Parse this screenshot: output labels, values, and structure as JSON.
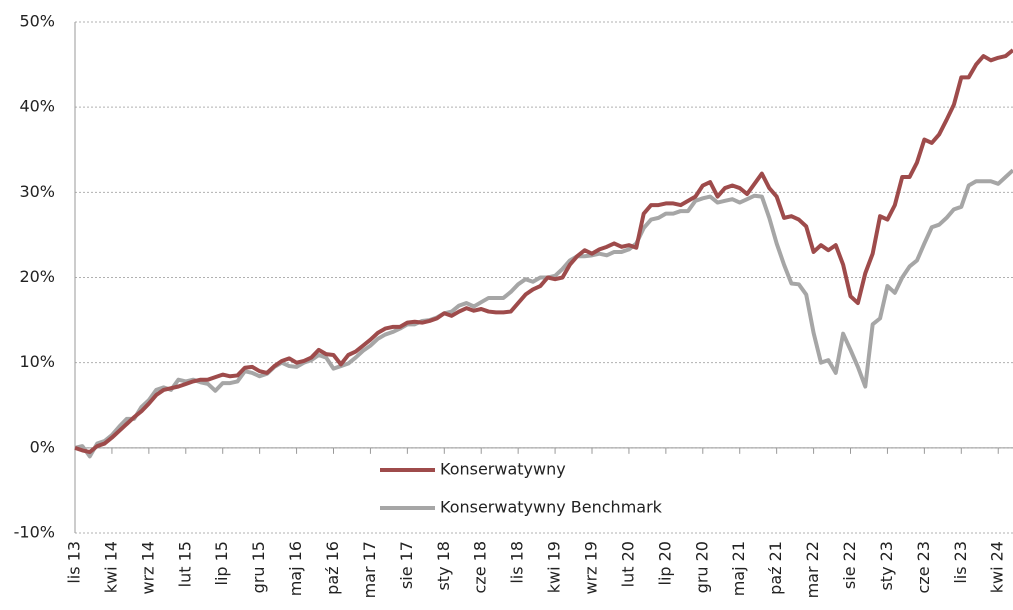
{
  "chart_data": {
    "type": "line",
    "categories": [
      "lis 13",
      null,
      null,
      null,
      null,
      "kwi 14",
      null,
      null,
      null,
      null,
      "wrz 14",
      null,
      null,
      null,
      null,
      "lut 15",
      null,
      null,
      null,
      null,
      "lip 15",
      null,
      null,
      null,
      null,
      "gru 15",
      null,
      null,
      null,
      null,
      "maj 16",
      null,
      null,
      null,
      null,
      "paź 16",
      null,
      null,
      null,
      null,
      "mar 17",
      null,
      null,
      null,
      null,
      "sie 17",
      null,
      null,
      null,
      null,
      "sty 18",
      null,
      null,
      null,
      null,
      "cze 18",
      null,
      null,
      null,
      null,
      "lis 18",
      null,
      null,
      null,
      null,
      "kwi 19",
      null,
      null,
      null,
      null,
      "wrz 19",
      null,
      null,
      null,
      null,
      "lut 20",
      null,
      null,
      null,
      null,
      "lip 20",
      null,
      null,
      null,
      null,
      "gru 20",
      null,
      null,
      null,
      null,
      "maj 21",
      null,
      null,
      null,
      null,
      "paź 21",
      null,
      null,
      null,
      null,
      "mar 22",
      null,
      null,
      null,
      null,
      "sie 22",
      null,
      null,
      null,
      null,
      "sty 23",
      null,
      null,
      null,
      null,
      "cze 23",
      null,
      null,
      null,
      null,
      "lis 23",
      null,
      null,
      null,
      null,
      "kwi 24",
      null,
      null
    ],
    "series": [
      {
        "name": "Konserwatywny",
        "color": "#9e4b4b",
        "values": [
          0,
          -0.3,
          -0.5,
          0.2,
          0.5,
          1.2,
          2,
          2.8,
          3.6,
          4.3,
          5.2,
          6.2,
          6.8,
          7.0,
          7.2,
          7.5,
          7.8,
          8.0,
          8.0,
          8.3,
          8.6,
          8.4,
          8.5,
          9.4,
          9.5,
          9.0,
          8.8,
          9.6,
          10.2,
          10.5,
          10.0,
          10.2,
          10.6,
          11.5,
          11.0,
          10.9,
          9.8,
          10.9,
          11.3,
          12.0,
          12.7,
          13.5,
          14.0,
          14.2,
          14.2,
          14.7,
          14.8,
          14.7,
          14.9,
          15.2,
          15.8,
          15.5,
          16.0,
          16.4,
          16.1,
          16.3,
          16.0,
          15.9,
          15.9,
          16.0,
          17.0,
          18.0,
          18.6,
          19.0,
          20.0,
          19.8,
          20.0,
          21.5,
          22.5,
          23.2,
          22.8,
          23.3,
          23.6,
          24.0,
          23.6,
          23.8,
          23.5,
          27.5,
          28.5,
          28.5,
          28.7,
          28.7,
          28.5,
          29.0,
          29.5,
          30.8,
          31.2,
          29.5,
          30.5,
          30.8,
          30.5,
          29.8,
          31.0,
          32.2,
          30.5,
          29.5,
          27.0,
          27.2,
          26.8,
          26.0,
          23.0,
          23.8,
          23.2,
          23.8,
          21.5,
          17.8,
          17.0,
          20.5,
          22.8,
          27.2,
          26.8,
          28.5,
          31.8,
          31.8,
          33.5,
          36.2,
          35.8,
          36.8,
          38.5,
          40.3,
          43.5,
          43.5,
          45.0,
          46.0,
          45.5,
          45.8,
          46.0,
          46.7
        ]
      },
      {
        "name": "Konserwatywny Benchmark",
        "color": "#a6a6a6",
        "values": [
          0,
          0.2,
          -1.0,
          0.5,
          0.8,
          1.5,
          2.5,
          3.4,
          3.4,
          4.8,
          5.6,
          6.8,
          7.1,
          6.8,
          8.0,
          7.8,
          8.0,
          7.7,
          7.5,
          6.7,
          7.6,
          7.6,
          7.8,
          9.0,
          8.8,
          8.4,
          8.7,
          9.5,
          10.0,
          9.6,
          9.5,
          10.0,
          10.3,
          10.9,
          10.6,
          9.3,
          9.6,
          9.9,
          10.6,
          11.4,
          12.0,
          12.8,
          13.3,
          13.6,
          14.0,
          14.5,
          14.5,
          14.9,
          15.0,
          15.3,
          15.8,
          16.0,
          16.7,
          17.0,
          16.6,
          17.1,
          17.6,
          17.6,
          17.6,
          18.3,
          19.2,
          19.8,
          19.5,
          20.0,
          20.0,
          20.2,
          21.0,
          22.0,
          22.5,
          22.5,
          22.6,
          22.8,
          22.6,
          23.0,
          23.0,
          23.3,
          24.0,
          25.8,
          26.8,
          27.0,
          27.5,
          27.5,
          27.8,
          27.8,
          29.0,
          29.3,
          29.5,
          28.8,
          29.0,
          29.2,
          28.8,
          29.2,
          29.6,
          29.5,
          27.0,
          24.0,
          21.5,
          19.3,
          19.2,
          18.0,
          13.5,
          10.0,
          10.3,
          8.8,
          13.4,
          11.5,
          9.5,
          7.2,
          14.5,
          15.2,
          19.0,
          18.2,
          20.0,
          21.3,
          22.0,
          24.0,
          25.9,
          26.2,
          27.0,
          28.0,
          28.3,
          30.8,
          31.3,
          31.3,
          31.3,
          31.0,
          31.8,
          32.6
        ]
      }
    ],
    "ylim": [
      -10,
      50
    ],
    "yticks": [
      {
        "value": -10,
        "label": "-10%"
      },
      {
        "value": 0,
        "label": "0%"
      },
      {
        "value": 10,
        "label": "10%"
      },
      {
        "value": 20,
        "label": "20%"
      },
      {
        "value": 30,
        "label": "30%"
      },
      {
        "value": 40,
        "label": "40%"
      },
      {
        "value": 50,
        "label": "50%"
      }
    ],
    "grid": true
  }
}
